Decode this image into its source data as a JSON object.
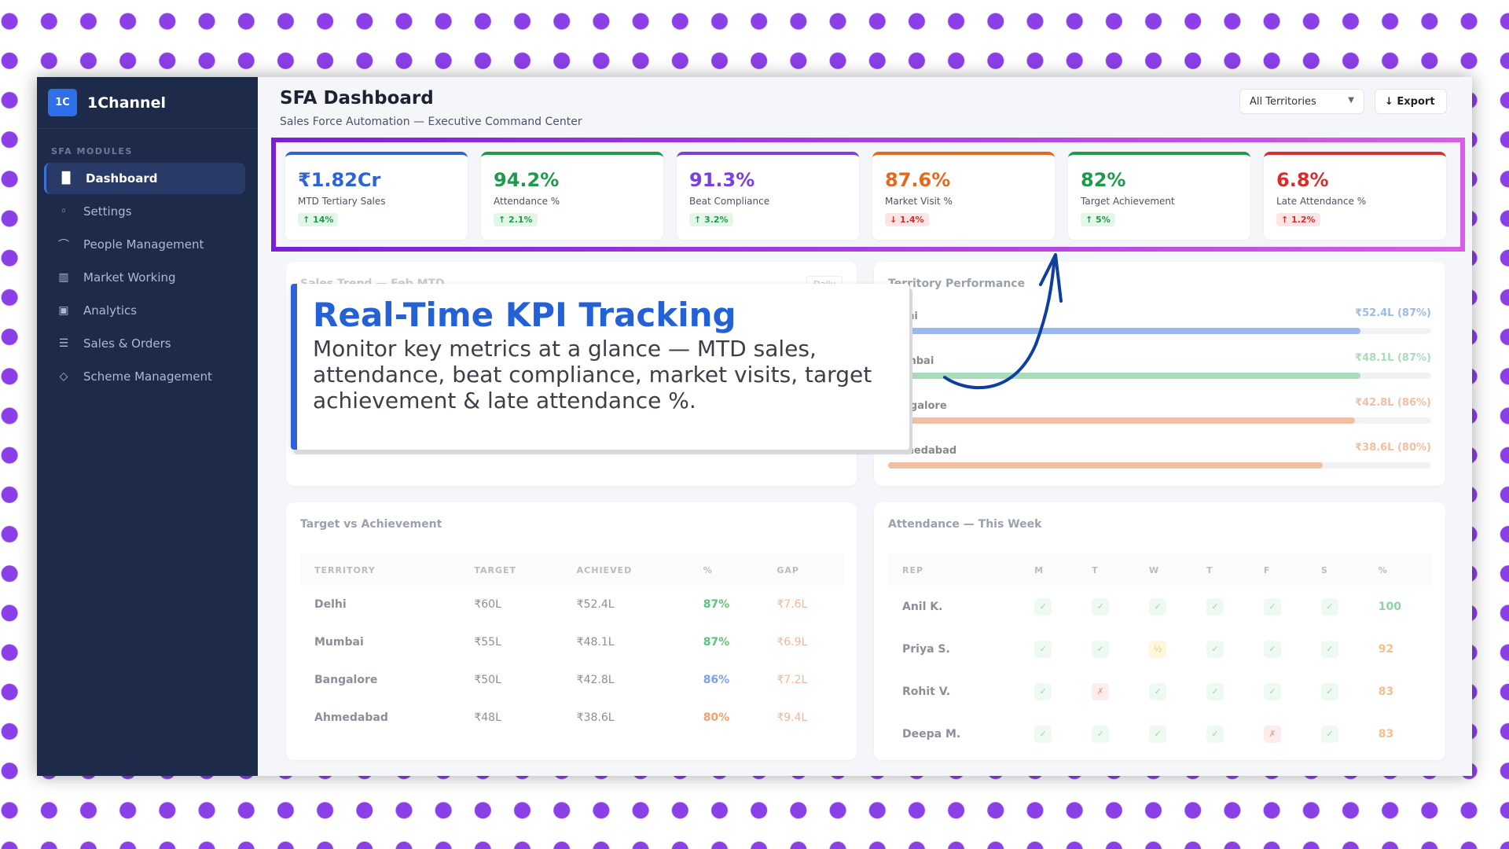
{
  "brand": {
    "logo": "1C",
    "name": "1Channel"
  },
  "sidebar": {
    "section": "SFA MODULES",
    "items": [
      {
        "label": "Dashboard",
        "icon": "bar-chart-icon",
        "glyph": "▐▌",
        "active": true
      },
      {
        "label": "Settings",
        "icon": "dot-icon",
        "glyph": "◦"
      },
      {
        "label": "People Management",
        "icon": "people-icon",
        "glyph": "⌒"
      },
      {
        "label": "Market Working",
        "icon": "map-icon",
        "glyph": "▥"
      },
      {
        "label": "Analytics",
        "icon": "analytics-icon",
        "glyph": "▣"
      },
      {
        "label": "Sales & Orders",
        "icon": "cart-icon",
        "glyph": "☰"
      },
      {
        "label": "Scheme Management",
        "icon": "tag-icon",
        "glyph": "◇"
      }
    ]
  },
  "header": {
    "title": "SFA Dashboard",
    "subtitle": "Sales Force Automation — Executive Command Center",
    "territory_select": "All Territories",
    "export_label": "↓ Export"
  },
  "kpis": [
    {
      "value": "₹1.82Cr",
      "label": "MTD Tertiary Sales",
      "change": "↑ 14%",
      "color": "#2f62d6",
      "trend": "up"
    },
    {
      "value": "94.2%",
      "label": "Attendance %",
      "change": "↑ 2.1%",
      "color": "#1f9a4d",
      "trend": "up"
    },
    {
      "value": "91.3%",
      "label": "Beat Compliance",
      "change": "↑ 3.2%",
      "color": "#7b3fe0",
      "trend": "up"
    },
    {
      "value": "87.6%",
      "label": "Market Visit %",
      "change": "↓ 1.4%",
      "color": "#e06a1f",
      "trend": "down"
    },
    {
      "value": "82%",
      "label": "Target Achievement",
      "change": "↑ 5%",
      "color": "#1f9a4d",
      "trend": "up"
    },
    {
      "value": "6.8%",
      "label": "Late Attendance %",
      "change": "↑ 1.2%",
      "color": "#d62e2e",
      "trend": "bad"
    }
  ],
  "sales_trend": {
    "title": "Sales Trend — Feb MTD",
    "toggle": "Daily"
  },
  "territory": {
    "title": "Territory Performance",
    "rows": [
      {
        "name": "Delhi",
        "value": "₹52.4L (87%)",
        "pct": 87,
        "color": "#9bb8ef"
      },
      {
        "name": "Mumbai",
        "value": "₹48.1L (87%)",
        "pct": 87,
        "color": "#a9dcb9"
      },
      {
        "name": "Bangalore",
        "value": "₹42.8L (86%)",
        "pct": 86,
        "color": "#f3bfa3"
      },
      {
        "name": "Ahmedabad",
        "value": "₹38.6L (80%)",
        "pct": 80,
        "color": "#f3bfa3"
      }
    ]
  },
  "target_table": {
    "title": "Target vs Achievement",
    "columns": [
      "TERRITORY",
      "TARGET",
      "ACHIEVED",
      "%",
      "GAP"
    ],
    "rows": [
      [
        "Delhi",
        "₹60L",
        "₹52.4L",
        "87%",
        "₹7.6L"
      ],
      [
        "Mumbai",
        "₹55L",
        "₹48.1L",
        "87%",
        "₹6.9L"
      ],
      [
        "Bangalore",
        "₹50L",
        "₹42.8L",
        "86%",
        "₹7.2L"
      ],
      [
        "Ahmedabad",
        "₹48L",
        "₹38.6L",
        "80%",
        "₹9.4L"
      ]
    ]
  },
  "attendance": {
    "title": "Attendance — This Week",
    "columns": [
      "REP",
      "M",
      "T",
      "W",
      "T",
      "F",
      "S",
      "%"
    ],
    "rows": [
      [
        "Anil K.",
        "✓",
        "✓",
        "✓",
        "✓",
        "✓",
        "✓",
        "100"
      ],
      [
        "Priya S.",
        "✓",
        "✓",
        "½",
        "✓",
        "✓",
        "✓",
        "92"
      ],
      [
        "Rohit V.",
        "✓",
        "✗",
        "✓",
        "✓",
        "✓",
        "✓",
        "83"
      ],
      [
        "Deepa M.",
        "✓",
        "✓",
        "✓",
        "✓",
        "✗",
        "✓",
        "83"
      ]
    ]
  },
  "callout": {
    "title": "Real-Time KPI Tracking",
    "body": "Monitor key metrics at a glance — MTD sales, attendance, beat compliance, market visits, target achievement & late attendance %."
  }
}
